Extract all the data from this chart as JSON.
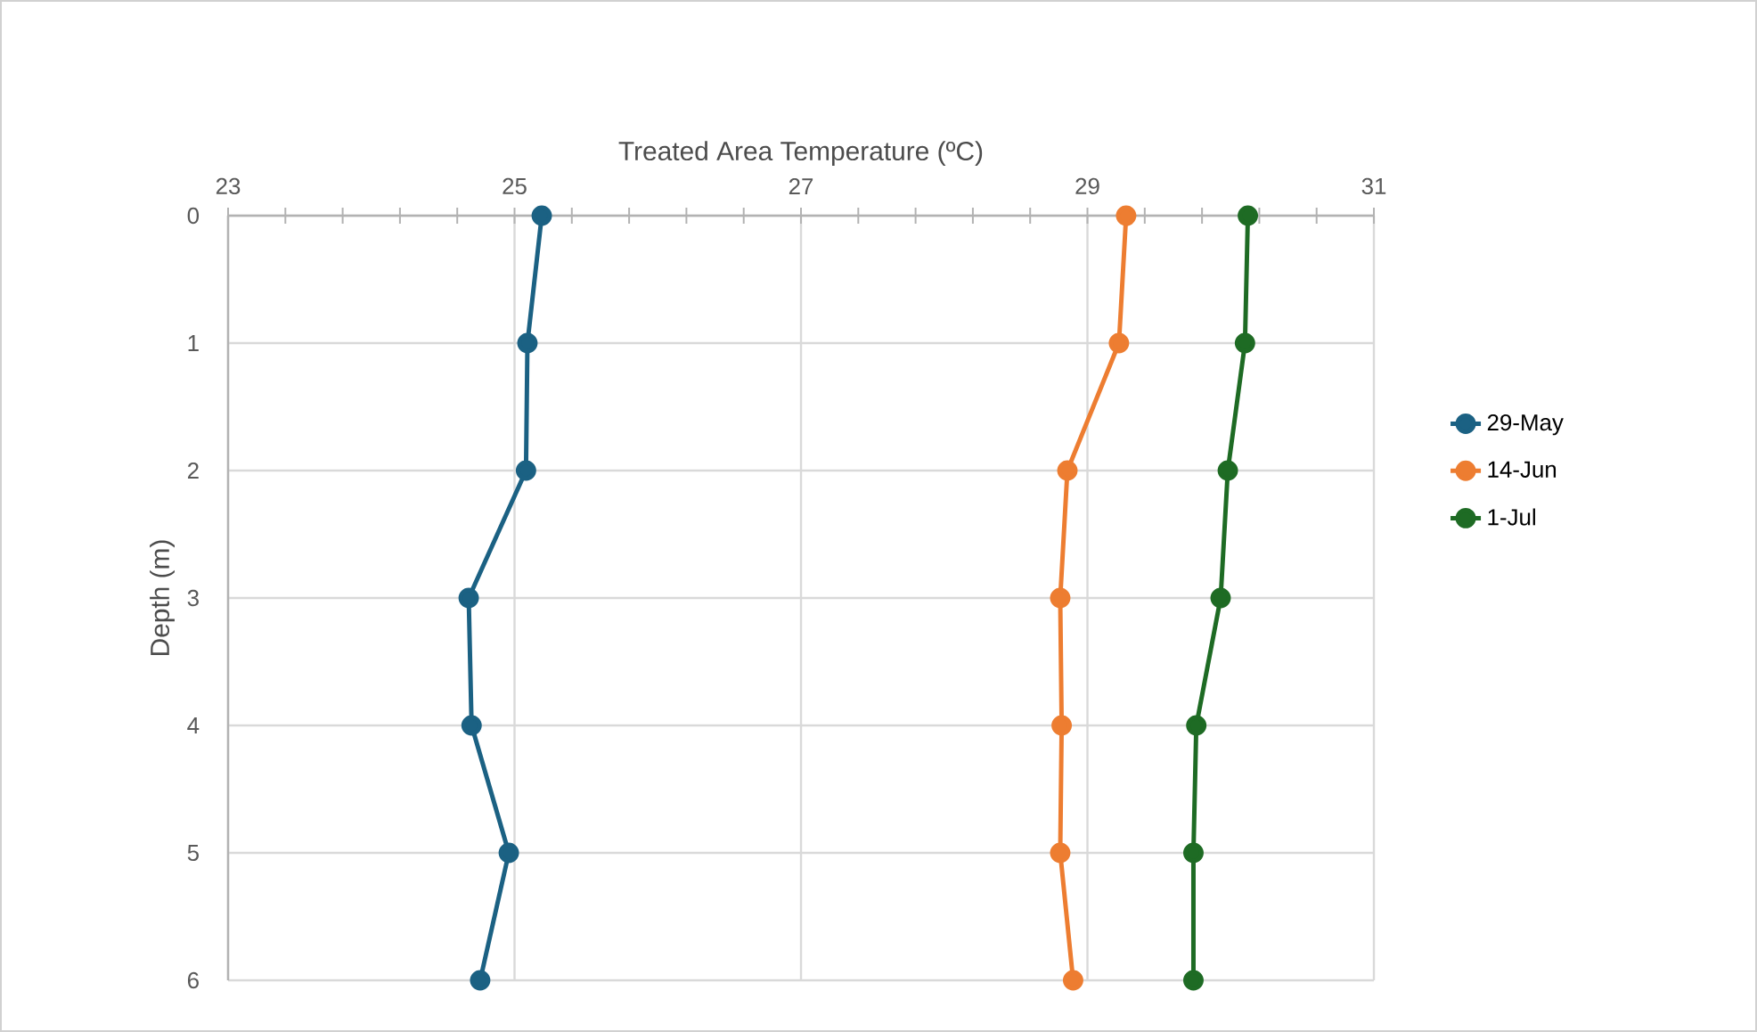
{
  "chart_data": {
    "type": "line",
    "xlabel": "Treated Area Temperature (ºC)",
    "ylabel": "Depth (m)",
    "xlim": [
      23,
      31
    ],
    "ylim": [
      6,
      0
    ],
    "xticks": [
      23,
      {
        "value": 23.4,
        "label": null
      },
      {
        "value": 23.8,
        "label": null
      },
      {
        "value": 24.2,
        "label": null
      },
      {
        "value": 24.6,
        "label": null
      },
      25,
      {
        "value": 25.4,
        "label": null
      },
      {
        "value": 25.8,
        "label": null
      },
      {
        "value": 26.2,
        "label": null
      },
      {
        "value": 26.6,
        "label": null
      },
      27,
      {
        "value": 27.4,
        "label": null
      },
      {
        "value": 27.8,
        "label": null
      },
      {
        "value": 28.2,
        "label": null
      },
      {
        "value": 28.6,
        "label": null
      },
      29,
      {
        "value": 29.4,
        "label": null
      },
      {
        "value": 29.8,
        "label": null
      },
      {
        "value": 30.2,
        "label": null
      },
      {
        "value": 30.6,
        "label": null
      },
      31
    ],
    "yticks": [
      0,
      1,
      2,
      3,
      4,
      5,
      6
    ],
    "grid": true,
    "legend": "right",
    "marker": "circle",
    "line_style": "solid",
    "series": [
      {
        "name": "29-May",
        "color": "#1b6183",
        "x": [
          25.19,
          25.09,
          25.08,
          24.68,
          24.7,
          24.96,
          24.76
        ],
        "values": [
          0,
          1,
          2,
          3,
          4,
          5,
          6
        ]
      },
      {
        "name": "14-Jun",
        "color": "#ed7d31",
        "x": [
          29.27,
          29.22,
          28.86,
          28.81,
          28.82,
          28.81,
          28.9
        ],
        "values": [
          0,
          1,
          2,
          3,
          4,
          5,
          6
        ]
      },
      {
        "name": "1-Jul",
        "color": "#1e6b24",
        "x": [
          30.12,
          30.1,
          29.98,
          29.93,
          29.76,
          29.74,
          29.74
        ],
        "values": [
          0,
          1,
          2,
          3,
          4,
          5,
          6
        ]
      }
    ]
  }
}
